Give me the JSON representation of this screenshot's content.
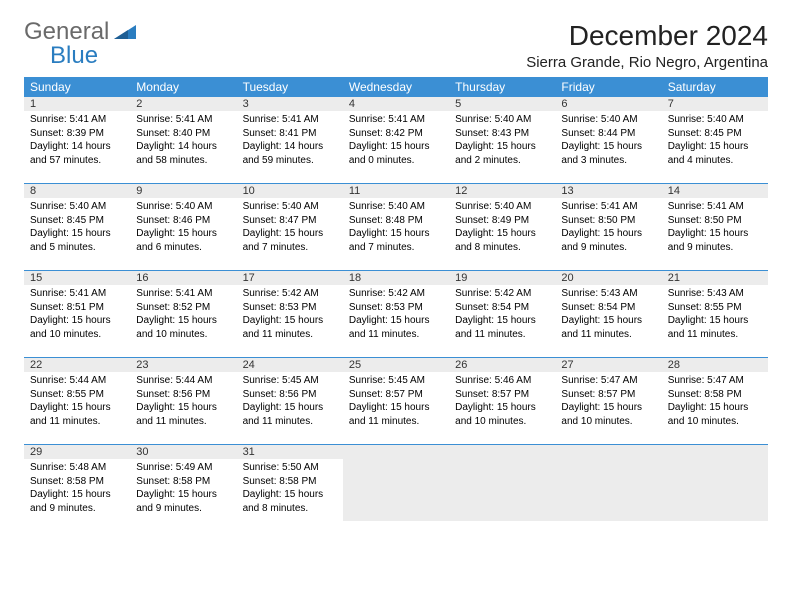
{
  "logo": {
    "general": "General",
    "blue": "Blue"
  },
  "title": "December 2024",
  "location": "Sierra Grande, Rio Negro, Argentina",
  "colors": {
    "header_bg": "#3b8fd4",
    "header_text": "#ffffff",
    "daynum_bg": "#ececec",
    "border": "#3b8fd4",
    "logo_gray": "#6a6a6a",
    "logo_blue": "#2a7dc0"
  },
  "day_names": [
    "Sunday",
    "Monday",
    "Tuesday",
    "Wednesday",
    "Thursday",
    "Friday",
    "Saturday"
  ],
  "weeks": [
    [
      {
        "n": "1",
        "sr": "5:41 AM",
        "ss": "8:39 PM",
        "dl": "14 hours and 57 minutes."
      },
      {
        "n": "2",
        "sr": "5:41 AM",
        "ss": "8:40 PM",
        "dl": "14 hours and 58 minutes."
      },
      {
        "n": "3",
        "sr": "5:41 AM",
        "ss": "8:41 PM",
        "dl": "14 hours and 59 minutes."
      },
      {
        "n": "4",
        "sr": "5:41 AM",
        "ss": "8:42 PM",
        "dl": "15 hours and 0 minutes."
      },
      {
        "n": "5",
        "sr": "5:40 AM",
        "ss": "8:43 PM",
        "dl": "15 hours and 2 minutes."
      },
      {
        "n": "6",
        "sr": "5:40 AM",
        "ss": "8:44 PM",
        "dl": "15 hours and 3 minutes."
      },
      {
        "n": "7",
        "sr": "5:40 AM",
        "ss": "8:45 PM",
        "dl": "15 hours and 4 minutes."
      }
    ],
    [
      {
        "n": "8",
        "sr": "5:40 AM",
        "ss": "8:45 PM",
        "dl": "15 hours and 5 minutes."
      },
      {
        "n": "9",
        "sr": "5:40 AM",
        "ss": "8:46 PM",
        "dl": "15 hours and 6 minutes."
      },
      {
        "n": "10",
        "sr": "5:40 AM",
        "ss": "8:47 PM",
        "dl": "15 hours and 7 minutes."
      },
      {
        "n": "11",
        "sr": "5:40 AM",
        "ss": "8:48 PM",
        "dl": "15 hours and 7 minutes."
      },
      {
        "n": "12",
        "sr": "5:40 AM",
        "ss": "8:49 PM",
        "dl": "15 hours and 8 minutes."
      },
      {
        "n": "13",
        "sr": "5:41 AM",
        "ss": "8:50 PM",
        "dl": "15 hours and 9 minutes."
      },
      {
        "n": "14",
        "sr": "5:41 AM",
        "ss": "8:50 PM",
        "dl": "15 hours and 9 minutes."
      }
    ],
    [
      {
        "n": "15",
        "sr": "5:41 AM",
        "ss": "8:51 PM",
        "dl": "15 hours and 10 minutes."
      },
      {
        "n": "16",
        "sr": "5:41 AM",
        "ss": "8:52 PM",
        "dl": "15 hours and 10 minutes."
      },
      {
        "n": "17",
        "sr": "5:42 AM",
        "ss": "8:53 PM",
        "dl": "15 hours and 11 minutes."
      },
      {
        "n": "18",
        "sr": "5:42 AM",
        "ss": "8:53 PM",
        "dl": "15 hours and 11 minutes."
      },
      {
        "n": "19",
        "sr": "5:42 AM",
        "ss": "8:54 PM",
        "dl": "15 hours and 11 minutes."
      },
      {
        "n": "20",
        "sr": "5:43 AM",
        "ss": "8:54 PM",
        "dl": "15 hours and 11 minutes."
      },
      {
        "n": "21",
        "sr": "5:43 AM",
        "ss": "8:55 PM",
        "dl": "15 hours and 11 minutes."
      }
    ],
    [
      {
        "n": "22",
        "sr": "5:44 AM",
        "ss": "8:55 PM",
        "dl": "15 hours and 11 minutes."
      },
      {
        "n": "23",
        "sr": "5:44 AM",
        "ss": "8:56 PM",
        "dl": "15 hours and 11 minutes."
      },
      {
        "n": "24",
        "sr": "5:45 AM",
        "ss": "8:56 PM",
        "dl": "15 hours and 11 minutes."
      },
      {
        "n": "25",
        "sr": "5:45 AM",
        "ss": "8:57 PM",
        "dl": "15 hours and 11 minutes."
      },
      {
        "n": "26",
        "sr": "5:46 AM",
        "ss": "8:57 PM",
        "dl": "15 hours and 10 minutes."
      },
      {
        "n": "27",
        "sr": "5:47 AM",
        "ss": "8:57 PM",
        "dl": "15 hours and 10 minutes."
      },
      {
        "n": "28",
        "sr": "5:47 AM",
        "ss": "8:58 PM",
        "dl": "15 hours and 10 minutes."
      }
    ],
    [
      {
        "n": "29",
        "sr": "5:48 AM",
        "ss": "8:58 PM",
        "dl": "15 hours and 9 minutes."
      },
      {
        "n": "30",
        "sr": "5:49 AM",
        "ss": "8:58 PM",
        "dl": "15 hours and 9 minutes."
      },
      {
        "n": "31",
        "sr": "5:50 AM",
        "ss": "8:58 PM",
        "dl": "15 hours and 8 minutes."
      },
      null,
      null,
      null,
      null
    ]
  ],
  "labels": {
    "sunrise": "Sunrise: ",
    "sunset": "Sunset: ",
    "daylight": "Daylight: "
  }
}
